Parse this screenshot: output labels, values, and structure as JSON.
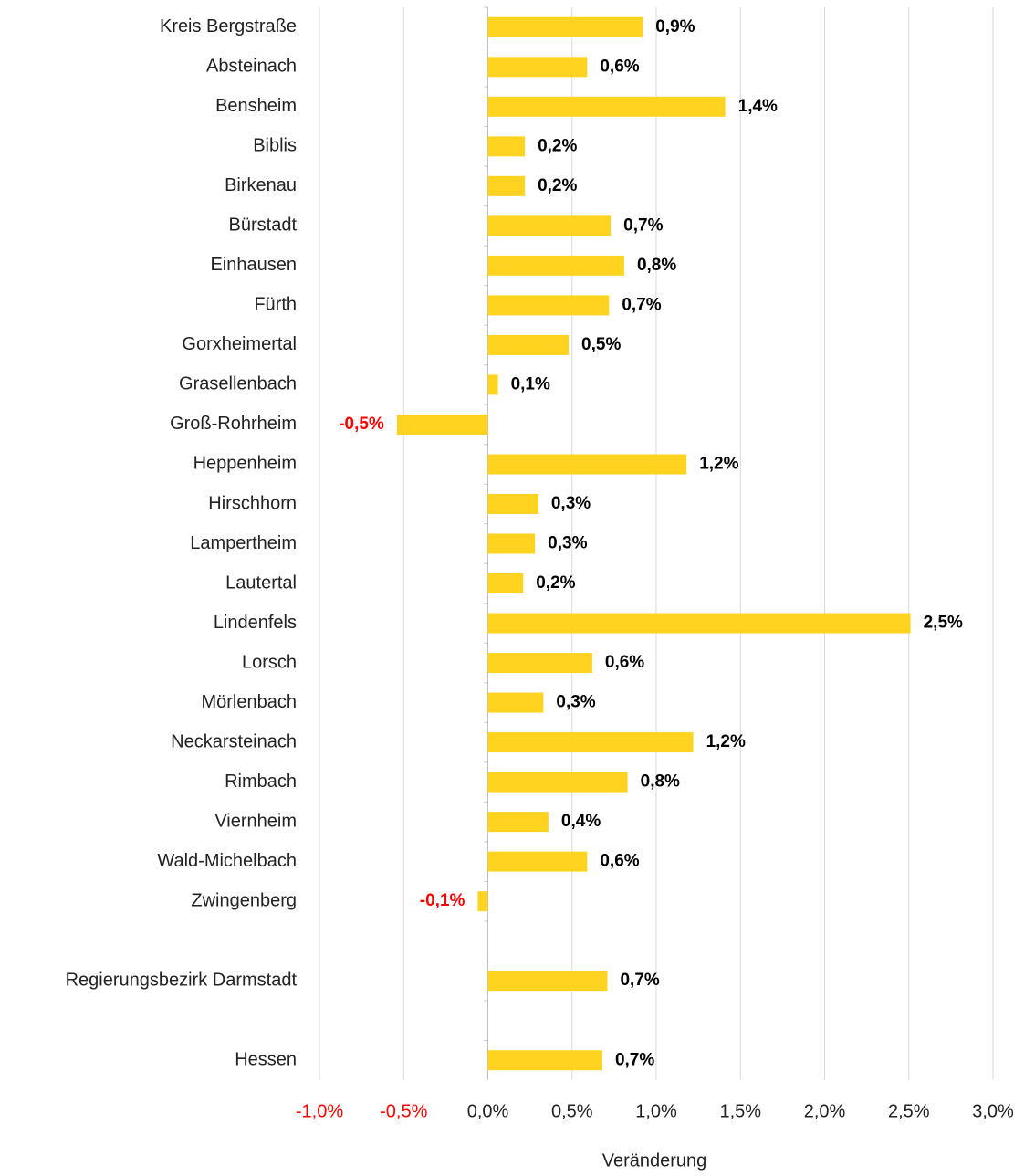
{
  "chart_data": {
    "type": "bar",
    "orientation": "horizontal",
    "x_label": "Veränderung",
    "categories": [
      "Kreis Bergstraße",
      "Absteinach",
      "Bensheim",
      "Biblis",
      "Birkenau",
      "Bürstadt",
      "Einhausen",
      "Fürth",
      "Gorxheimertal",
      "Grasellenbach",
      "Groß-Rohrheim",
      "Heppenheim",
      "Hirschhorn",
      "Lampertheim",
      "Lautertal",
      "Lindenfels",
      "Lorsch",
      "Mörlenbach",
      "Neckarsteinach",
      "Rimbach",
      "Viernheim",
      "Wald-Michelbach",
      "Zwingenberg",
      null,
      "Regierungsbezirk Darmstadt",
      null,
      "Hessen"
    ],
    "values": [
      0.92,
      0.59,
      1.41,
      0.22,
      0.22,
      0.73,
      0.81,
      0.72,
      0.48,
      0.06,
      -0.54,
      1.18,
      0.3,
      0.28,
      0.21,
      2.51,
      0.62,
      0.33,
      1.22,
      0.83,
      0.36,
      0.59,
      -0.06,
      null,
      0.71,
      null,
      0.68
    ],
    "value_labels": [
      "0,9%",
      "0,6%",
      "1,4%",
      "0,2%",
      "0,2%",
      "0,7%",
      "0,8%",
      "0,7%",
      "0,5%",
      "0,1%",
      "-0,5%",
      "1,2%",
      "0,3%",
      "0,3%",
      "0,2%",
      "2,5%",
      "0,6%",
      "0,3%",
      "1,2%",
      "0,8%",
      "0,4%",
      "0,6%",
      "-0,1%",
      null,
      "0,7%",
      null,
      "0,7%"
    ],
    "color": "#ffd320",
    "negative_label_color": "#ff0000",
    "xlim": [
      -1,
      3
    ],
    "xticks": [
      {
        "value": -1,
        "label": "-1,0%"
      },
      {
        "value": -0.5,
        "label": "-0,5%"
      },
      {
        "value": 0,
        "label": "0,0%"
      },
      {
        "value": 0.5,
        "label": "0,5%"
      },
      {
        "value": 1,
        "label": "1,0%"
      },
      {
        "value": 1.5,
        "label": "1,5%"
      },
      {
        "value": 2,
        "label": "2,0%"
      },
      {
        "value": 2.5,
        "label": "2,5%"
      },
      {
        "value": 3,
        "label": "3,0%"
      }
    ],
    "grid": true
  }
}
